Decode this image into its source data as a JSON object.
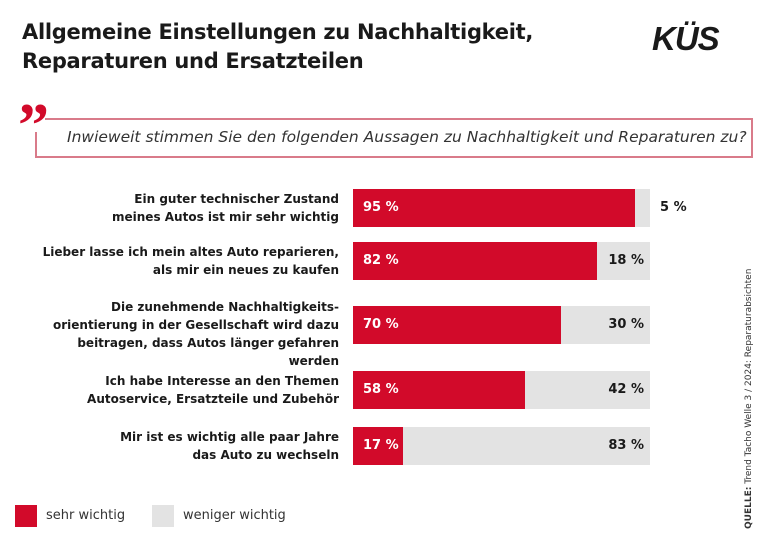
{
  "title_line1": "Allgemeine Einstellungen zu Nachhaltigkeit,",
  "title_line2": "Reparaturen und Ersatzteilen",
  "logo": "KÜS",
  "question": "Inwieweit stimmen Sie den folgenden Aussagen zu Nachhaltigkeit und Reparaturen zu?",
  "source_label": "QUELLE:",
  "source_text": " Trend Tacho Welle 3 / 2024: Reparaturabsichten",
  "colors": {
    "sehr_wichtig": "#d20a2a",
    "weniger_wichtig": "#e3e3e3"
  },
  "chart_data": {
    "type": "bar",
    "orientation": "horizontal",
    "stacked": true,
    "categories": [
      "Ein guter technischer Zustand meines Autos ist mir sehr wichtig",
      "Lieber lasse ich mein altes Auto reparieren, als mir ein neues zu kaufen",
      "Die zunehmende Nachhaltigkeits-orientierung in der Gesellschaft wird dazu beitragen, dass Autos länger gefahren werden",
      "Ich habe Interesse an den Themen Autoservice, Ersatzteile und Zubehör",
      "Mir ist es wichtig alle paar Jahre das Auto zu wechseln"
    ],
    "category_lines": [
      [
        "Ein guter technischer Zustand",
        "meines Autos ist mir sehr wichtig"
      ],
      [
        "Lieber lasse ich mein altes Auto reparieren,",
        "als mir ein neues zu kaufen"
      ],
      [
        "Die zunehmende Nachhaltigkeits-",
        "orientierung in der Gesellschaft wird dazu",
        "beitragen, dass Autos länger gefahren werden"
      ],
      [
        "Ich habe Interesse an den Themen",
        "Autoservice, Ersatzteile und Zubehör"
      ],
      [
        "Mir ist es wichtig alle paar Jahre",
        "das Auto zu wechseln"
      ]
    ],
    "series": [
      {
        "name": "sehr wichtig",
        "values": [
          95,
          82,
          70,
          58,
          17
        ]
      },
      {
        "name": "weniger wichtig",
        "values": [
          5,
          18,
          30,
          42,
          83
        ]
      }
    ],
    "value_labels": [
      [
        "95 %",
        "82 %",
        "70 %",
        "58 %",
        "17 %"
      ],
      [
        "5 %",
        "18 %",
        "30 %",
        "42 %",
        "83 %"
      ]
    ],
    "xlim": [
      0,
      100
    ],
    "legend": "bottom-left"
  }
}
